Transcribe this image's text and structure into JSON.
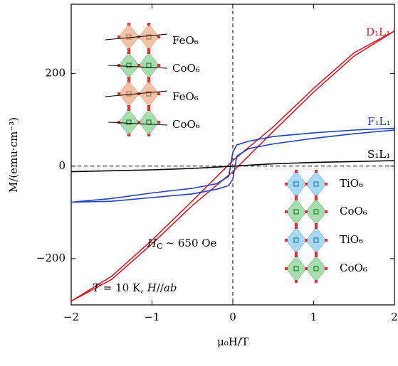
{
  "chart_data": {
    "type": "line",
    "x_label": "μ₀H/T",
    "y_label": "M/(emu·cm⁻³)",
    "xlim": [
      -2,
      2
    ],
    "xticks": [
      {
        "value": -2,
        "label": "−2"
      },
      {
        "value": -1,
        "label": "−1"
      },
      0,
      1,
      2
    ],
    "ylim": [
      -300,
      350
    ],
    "yticks": [
      {
        "value": -200,
        "label": "−200"
      },
      0,
      200
    ],
    "series": [
      {
        "name": "D₁L₁",
        "color": "#d0202a",
        "x": [
          2,
          1.5,
          1,
          0.5,
          0,
          -0.5,
          -1,
          -1.5,
          -2,
          -1.5,
          -1,
          -0.5,
          0,
          0.5,
          1,
          1.5,
          2
        ],
        "values": [
          292,
          245,
          168,
          85,
          12,
          -75,
          -160,
          -238,
          -292,
          -245,
          -168,
          -85,
          -12,
          75,
          160,
          238,
          292
        ]
      },
      {
        "name": "F₁L₁",
        "color": "#1f3fbf",
        "x": [
          2,
          1.5,
          1,
          0.5,
          0.2,
          0.05,
          0,
          -0.05,
          -0.2,
          -0.5,
          -1,
          -1.5,
          -2,
          -1.5,
          -1,
          -0.5,
          -0.2,
          -0.05,
          0,
          0.05,
          0.2,
          0.5,
          1,
          1.5,
          2
        ],
        "values": [
          82,
          78,
          72,
          64,
          54,
          46,
          30,
          -22,
          -38,
          -48,
          -58,
          -70,
          -78,
          -76,
          -68,
          -60,
          -50,
          -42,
          -28,
          22,
          38,
          48,
          60,
          70,
          78
        ]
      },
      {
        "name": "S₁L₁",
        "color": "#000000",
        "x": [
          -2,
          -1,
          -0.5,
          0,
          0.5,
          1,
          2
        ],
        "values": [
          -12,
          -8,
          -5,
          0,
          5,
          8,
          12
        ]
      }
    ],
    "hc_annotation": {
      "symbol": "H",
      "subscript": "C",
      "text": "∼ 650 Oe"
    },
    "condition_annotation": {
      "t_symbol": "T",
      "t_text": " = 10 K, ",
      "h_symbol": "H",
      "h_text": "//",
      "plane": "ab"
    },
    "left_inset": [
      "FeO₆",
      "CoO₆",
      "FeO₆",
      "CoO₆"
    ],
    "right_inset": [
      "TiO₆",
      "CoO₆",
      "TiO₆",
      "CoO₆"
    ]
  }
}
